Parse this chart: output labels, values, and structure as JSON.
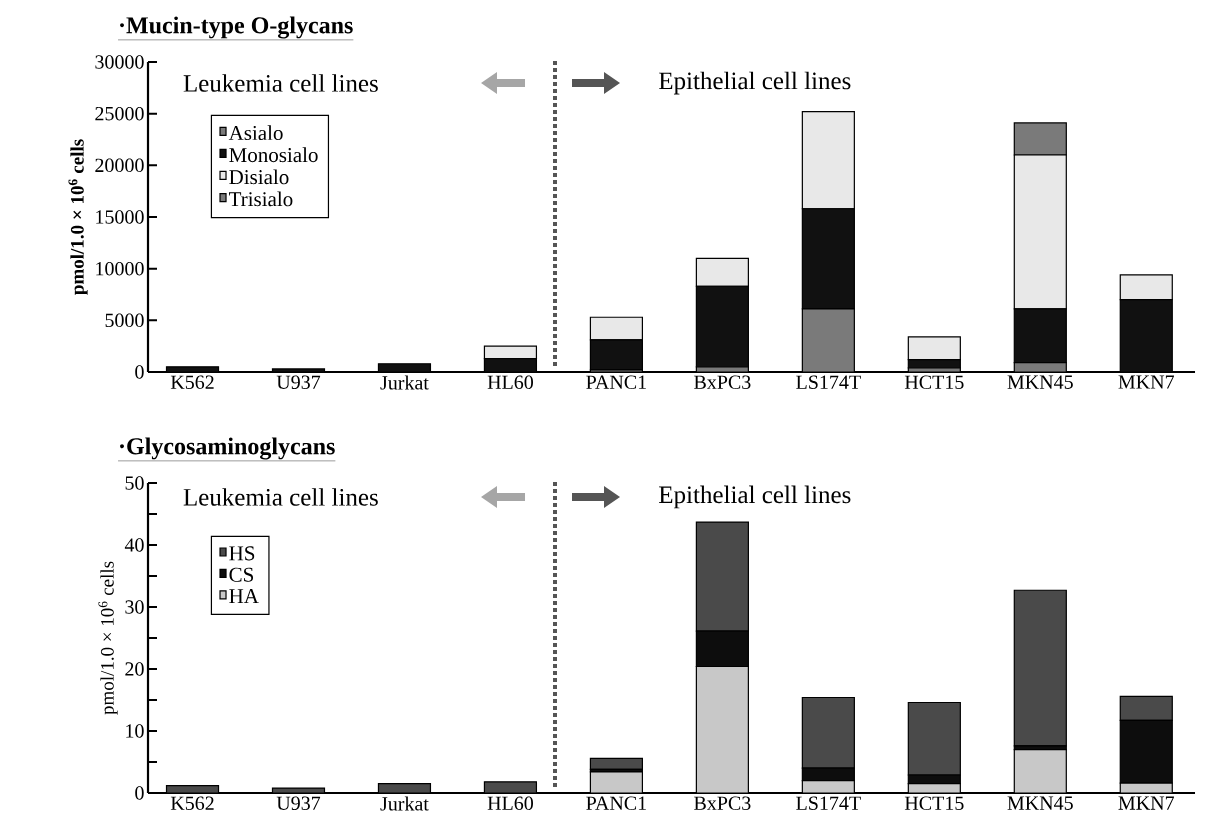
{
  "chart_data": [
    {
      "type": "bar",
      "title": "·Mucin-type O-glycans",
      "ylabel": "pmol/1.0 × 10$^{6}$ cells",
      "categories": [
        "K562",
        "U937",
        "Jurkat",
        "HL60",
        "PANC1",
        "BxPC3",
        "LS174T",
        "HCT15",
        "MKN45",
        "MKN7"
      ],
      "stacked": true,
      "series": [
        {
          "name": "Asialo",
          "color": "#7a7a7a",
          "values": [
            0,
            0,
            0,
            0,
            200,
            500,
            6100,
            400,
            900,
            0
          ]
        },
        {
          "name": "Monosialo",
          "color": "#111111",
          "values": [
            500,
            300,
            800,
            1300,
            2900,
            7800,
            9700,
            800,
            5200,
            7000
          ]
        },
        {
          "name": "Disialo",
          "color": "#e8e8e8",
          "values": [
            0,
            0,
            0,
            1200,
            2200,
            2700,
            9400,
            2200,
            14900,
            2400
          ]
        },
        {
          "name": "Trisialo",
          "color": "#7a7a7a",
          "values": [
            0,
            0,
            0,
            0,
            0,
            0,
            0,
            0,
            3100,
            0
          ]
        }
      ],
      "ylim": [
        0,
        30000
      ],
      "yticks": [
        0,
        5000,
        10000,
        15000,
        20000,
        25000,
        30000
      ],
      "legend": "top left",
      "annotations": [
        "Leukemia cell lines",
        "Epithelial cell lines"
      ]
    },
    {
      "type": "bar",
      "title": "·Glycosaminoglycans",
      "ylabel": "pmol/1.0 × 10$^{6}$ cells",
      "categories": [
        "K562",
        "U937",
        "Jurkat",
        "HL60",
        "PANC1",
        "BxPC3",
        "LS174T",
        "HCT15",
        "MKN45",
        "MKN7"
      ],
      "stacked": true,
      "series": [
        {
          "name": "HA",
          "color": "#c8c8c8",
          "values": [
            0,
            0,
            0,
            0,
            3.4,
            20.4,
            2.0,
            1.5,
            7.0,
            1.6
          ]
        },
        {
          "name": "CS",
          "color": "#0d0d0d",
          "values": [
            0,
            0,
            0,
            0,
            0.4,
            5.7,
            2.0,
            1.4,
            0.6,
            10.1
          ]
        },
        {
          "name": "HS",
          "color": "#4a4a4a",
          "values": [
            1.2,
            0.8,
            1.5,
            1.8,
            1.8,
            17.6,
            11.4,
            11.7,
            25.1,
            3.9
          ]
        }
      ],
      "ylim": [
        0,
        50
      ],
      "yticks": [
        0,
        {
          "value": 5,
          "label": null
        },
        10,
        {
          "value": 15,
          "label": null
        },
        20,
        {
          "value": 25,
          "label": null
        },
        30,
        {
          "value": 35,
          "label": null
        },
        40,
        {
          "value": 45,
          "label": null
        },
        50
      ],
      "legend": "top left",
      "annotations": [
        "Leukemia cell lines",
        "Epithelial cell lines"
      ]
    }
  ]
}
